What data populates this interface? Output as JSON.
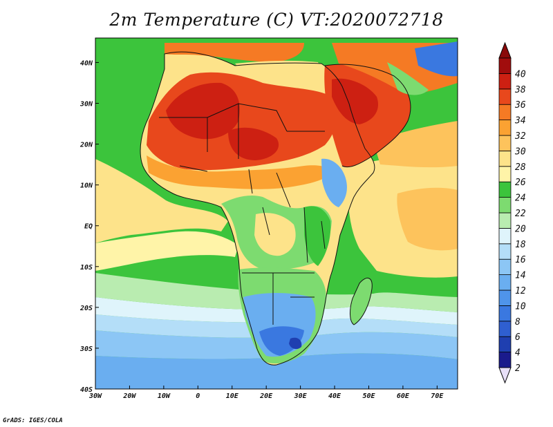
{
  "title": "2m Temperature (C) VT:2020072718",
  "credit": "GrADS: IGES/COLA",
  "map": {
    "lon_range": [
      -30,
      76
    ],
    "lat_range": [
      -40,
      46
    ],
    "lon_ticks": [
      {
        "value": -30,
        "label": "30W"
      },
      {
        "value": -20,
        "label": "20W"
      },
      {
        "value": -10,
        "label": "10W"
      },
      {
        "value": 0,
        "label": "0"
      },
      {
        "value": 10,
        "label": "10E"
      },
      {
        "value": 20,
        "label": "20E"
      },
      {
        "value": 30,
        "label": "30E"
      },
      {
        "value": 40,
        "label": "40E"
      },
      {
        "value": 50,
        "label": "50E"
      },
      {
        "value": 60,
        "label": "60E"
      },
      {
        "value": 70,
        "label": "70E"
      }
    ],
    "lat_ticks": [
      {
        "value": 40,
        "label": "40N"
      },
      {
        "value": 30,
        "label": "30N"
      },
      {
        "value": 20,
        "label": "20N"
      },
      {
        "value": 10,
        "label": "10N"
      },
      {
        "value": 0,
        "label": "EQ"
      },
      {
        "value": -10,
        "label": "10S"
      },
      {
        "value": -20,
        "label": "20S"
      },
      {
        "value": -30,
        "label": "30S"
      },
      {
        "value": -40,
        "label": "40S"
      }
    ]
  },
  "colorbar": {
    "levels": [
      {
        "label": "2",
        "color": "#1a1a8c"
      },
      {
        "label": "4",
        "color": "#1f3fb0"
      },
      {
        "label": "6",
        "color": "#2f5fd0"
      },
      {
        "label": "8",
        "color": "#3a78e0"
      },
      {
        "label": "10",
        "color": "#4f94ea"
      },
      {
        "label": "12",
        "color": "#6aaef0"
      },
      {
        "label": "14",
        "color": "#8cc6f5"
      },
      {
        "label": "16",
        "color": "#b4def8"
      },
      {
        "label": "18",
        "color": "#dff4fb"
      },
      {
        "label": "20",
        "color": "#b9ecb0"
      },
      {
        "label": "22",
        "color": "#7ddb70"
      },
      {
        "label": "24",
        "color": "#3cc43c"
      },
      {
        "label": "26",
        "color": "#fff4a8"
      },
      {
        "label": "28",
        "color": "#fde38a"
      },
      {
        "label": "30",
        "color": "#fdc35c"
      },
      {
        "label": "32",
        "color": "#fba232"
      },
      {
        "label": "34",
        "color": "#f57a24"
      },
      {
        "label": "36",
        "color": "#e8481c"
      },
      {
        "label": "38",
        "color": "#cd2012"
      },
      {
        "label": "40",
        "color": "#a10d0d"
      }
    ],
    "under_color": "#e8e0f8",
    "over_color": "#8a0a0a"
  },
  "ocean_color": "#3cc43c"
}
